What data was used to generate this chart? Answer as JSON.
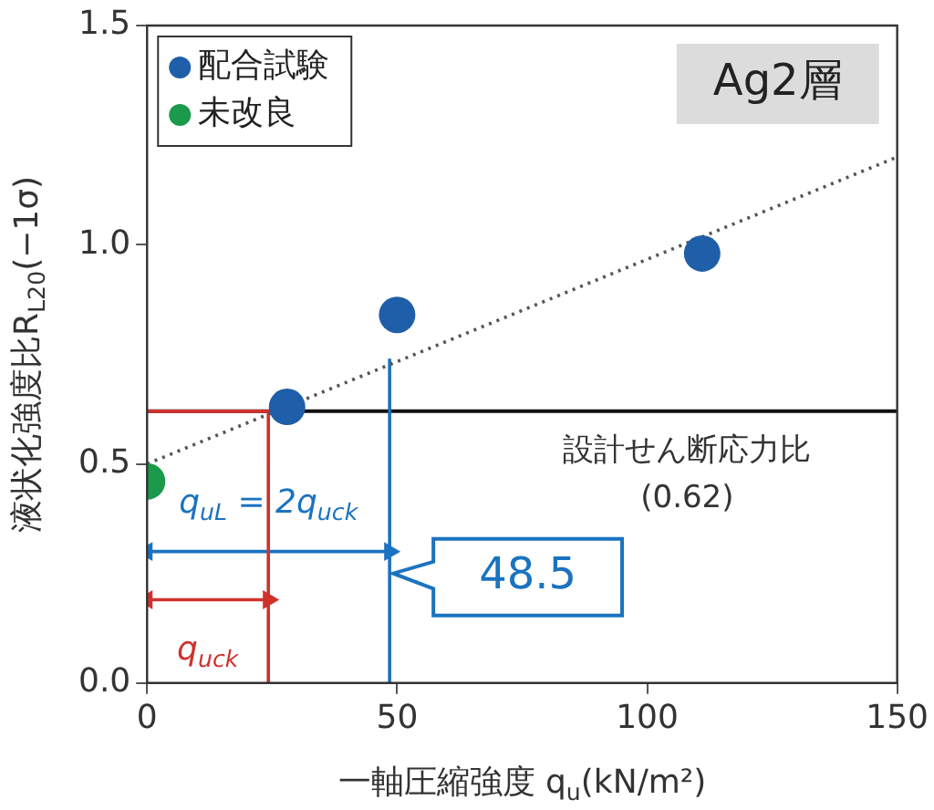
{
  "chart_data": {
    "type": "scatter",
    "xlabel": "一軸圧縮強度 q$_{u}$(kN/m²)",
    "ylabel": "液状化強度比R$_{L20}$(−1σ)",
    "xlim": [
      0,
      150
    ],
    "xticks": [
      0,
      50,
      100,
      150
    ],
    "ylim": [
      0,
      1.5
    ],
    "yticks": [
      {
        "value": 0,
        "label": "0.0"
      },
      {
        "value": 0.5,
        "label": "0.5"
      },
      {
        "value": 1,
        "label": "1.0"
      },
      {
        "value": 1.5,
        "label": "1.5"
      }
    ],
    "grid": false,
    "legend": "top left",
    "series": [
      {
        "name": "配合試験",
        "type": "scatter",
        "color": "#1f5ea8",
        "x": [
          28,
          50,
          111
        ],
        "values": [
          0.63,
          0.84,
          0.98
        ]
      },
      {
        "name": "未改良",
        "type": "scatter",
        "color": "#1a9a4a",
        "x": [
          0
        ],
        "values": [
          0.46
        ]
      },
      {
        "type": "line",
        "color": "#555555",
        "line_style": "dotted",
        "x": [
          0,
          150
        ],
        "values": [
          0.5,
          1.2
        ]
      },
      {
        "type": "line",
        "color": "#d0312d",
        "x": [
          0,
          24.25,
          24.25
        ],
        "values": [
          0.62,
          0.62,
          0
        ]
      },
      {
        "type": "line",
        "color": "#1a73c0",
        "x": [
          48.5,
          48.5
        ],
        "values": [
          0,
          0.74
        ]
      },
      {
        "type": "line",
        "color": "#1a73c0",
        "marker": "triangle",
        "x": [
          0,
          48.5
        ],
        "values": [
          0.3,
          0.3
        ]
      },
      {
        "type": "line",
        "color": "#d0312d",
        "marker": "triangle",
        "x": [
          0,
          24.25
        ],
        "values": [
          0.19,
          0.19
        ]
      }
    ],
    "ref_lines": [
      {
        "axis": "y",
        "value": 0.62,
        "label": "設計せん断応力比\n(0.62)",
        "color": "#111111"
      }
    ],
    "annotations": [
      "Ag2層",
      {
        "text": "q$_{uL}$ = 2q$_{uck}$",
        "x": 24.25,
        "y": 0.3
      },
      {
        "text": "q$_{uck}$",
        "x": 12.125,
        "y": 0.19
      },
      {
        "text": "48.5",
        "x": 48.5,
        "y": 0.25
      }
    ]
  }
}
